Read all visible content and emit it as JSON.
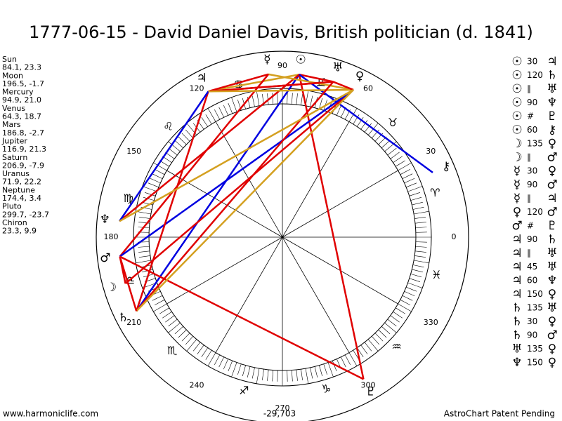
{
  "title": "1777-06-15 - David Daniel Davis, British politician (d. 1841)",
  "positions": [
    {
      "name": "Sun",
      "glyph": "☉",
      "coords": "84.1, 23.3"
    },
    {
      "name": "Moon",
      "glyph": "☽",
      "coords": "196.5, -1.7"
    },
    {
      "name": "Mercury",
      "glyph": "☿",
      "coords": "94.9, 21.0"
    },
    {
      "name": "Venus",
      "glyph": "♀",
      "coords": "64.3, 18.7"
    },
    {
      "name": "Mars",
      "glyph": "♂",
      "coords": "186.8, -2.7"
    },
    {
      "name": "Jupiter",
      "glyph": "♃",
      "coords": "116.9, 21.3"
    },
    {
      "name": "Saturn",
      "glyph": "♄",
      "coords": "206.9, -7.9"
    },
    {
      "name": "Uranus",
      "glyph": "♅",
      "coords": "71.9, 22.2"
    },
    {
      "name": "Neptune",
      "glyph": "♆",
      "coords": "174.4, 3.4"
    },
    {
      "name": "Pluto",
      "glyph": "♇",
      "coords": "299.7, -23.7"
    },
    {
      "name": "Chiron",
      "glyph": "⚷",
      "coords": "23.3, 9.9"
    }
  ],
  "zodiac": [
    "♈",
    "♉",
    "♊",
    "♋",
    "♌",
    "♍",
    "♎",
    "♏",
    "♐",
    "♑",
    "♒",
    "♓"
  ],
  "degree_labels": [
    0,
    30,
    60,
    90,
    120,
    150,
    180,
    210,
    240,
    270,
    300,
    330
  ],
  "aspects": [
    {
      "from": "☉",
      "aspect": "30",
      "to": "♃",
      "color": "#d4a020"
    },
    {
      "from": "☉",
      "aspect": "120",
      "to": "♄",
      "color": "#0000e0"
    },
    {
      "from": "☉",
      "aspect": "∥",
      "to": "♅",
      "color": "#e00000"
    },
    {
      "from": "☉",
      "aspect": "90",
      "to": "♆",
      "color": "#e00000"
    },
    {
      "from": "☉",
      "aspect": "#",
      "to": "♇",
      "color": "#e00000"
    },
    {
      "from": "☉",
      "aspect": "60",
      "to": "⚷",
      "color": "#0000e0"
    },
    {
      "from": "☽",
      "aspect": "135",
      "to": "♀",
      "color": "#e00000"
    },
    {
      "from": "☽",
      "aspect": "∥",
      "to": "♂",
      "color": "#e00000"
    },
    {
      "from": "☿",
      "aspect": "30",
      "to": "♀",
      "color": "#d4a020"
    },
    {
      "from": "☿",
      "aspect": "90",
      "to": "♂",
      "color": "#e00000"
    },
    {
      "from": "☿",
      "aspect": "∥",
      "to": "♃",
      "color": "#e00000"
    },
    {
      "from": "♀",
      "aspect": "120",
      "to": "♂",
      "color": "#0000e0"
    },
    {
      "from": "♂",
      "aspect": "#",
      "to": "♇",
      "color": "#e00000"
    },
    {
      "from": "♃",
      "aspect": "90",
      "to": "♄",
      "color": "#e00000"
    },
    {
      "from": "♃",
      "aspect": "∥",
      "to": "♅",
      "color": "#e00000"
    },
    {
      "from": "♃",
      "aspect": "45",
      "to": "♅",
      "color": "#e00000"
    },
    {
      "from": "♃",
      "aspect": "60",
      "to": "♆",
      "color": "#0000e0"
    },
    {
      "from": "♃",
      "aspect": "150",
      "to": "♀",
      "color": "#d4a020"
    },
    {
      "from": "♄",
      "aspect": "135",
      "to": "♅",
      "color": "#e00000"
    },
    {
      "from": "♄",
      "aspect": "30",
      "to": "♀",
      "color": "#d4a020"
    },
    {
      "from": "♄",
      "aspect": "90",
      "to": "♂",
      "color": "#e00000"
    },
    {
      "from": "♅",
      "aspect": "135",
      "to": "♀",
      "color": "#e00000"
    },
    {
      "from": "♆",
      "aspect": "150",
      "to": "♀",
      "color": "#d4a020"
    }
  ],
  "footer": {
    "left": "www.harmoniclife.com",
    "center": "-29,703",
    "right": "AstroChart Patent Pending"
  }
}
